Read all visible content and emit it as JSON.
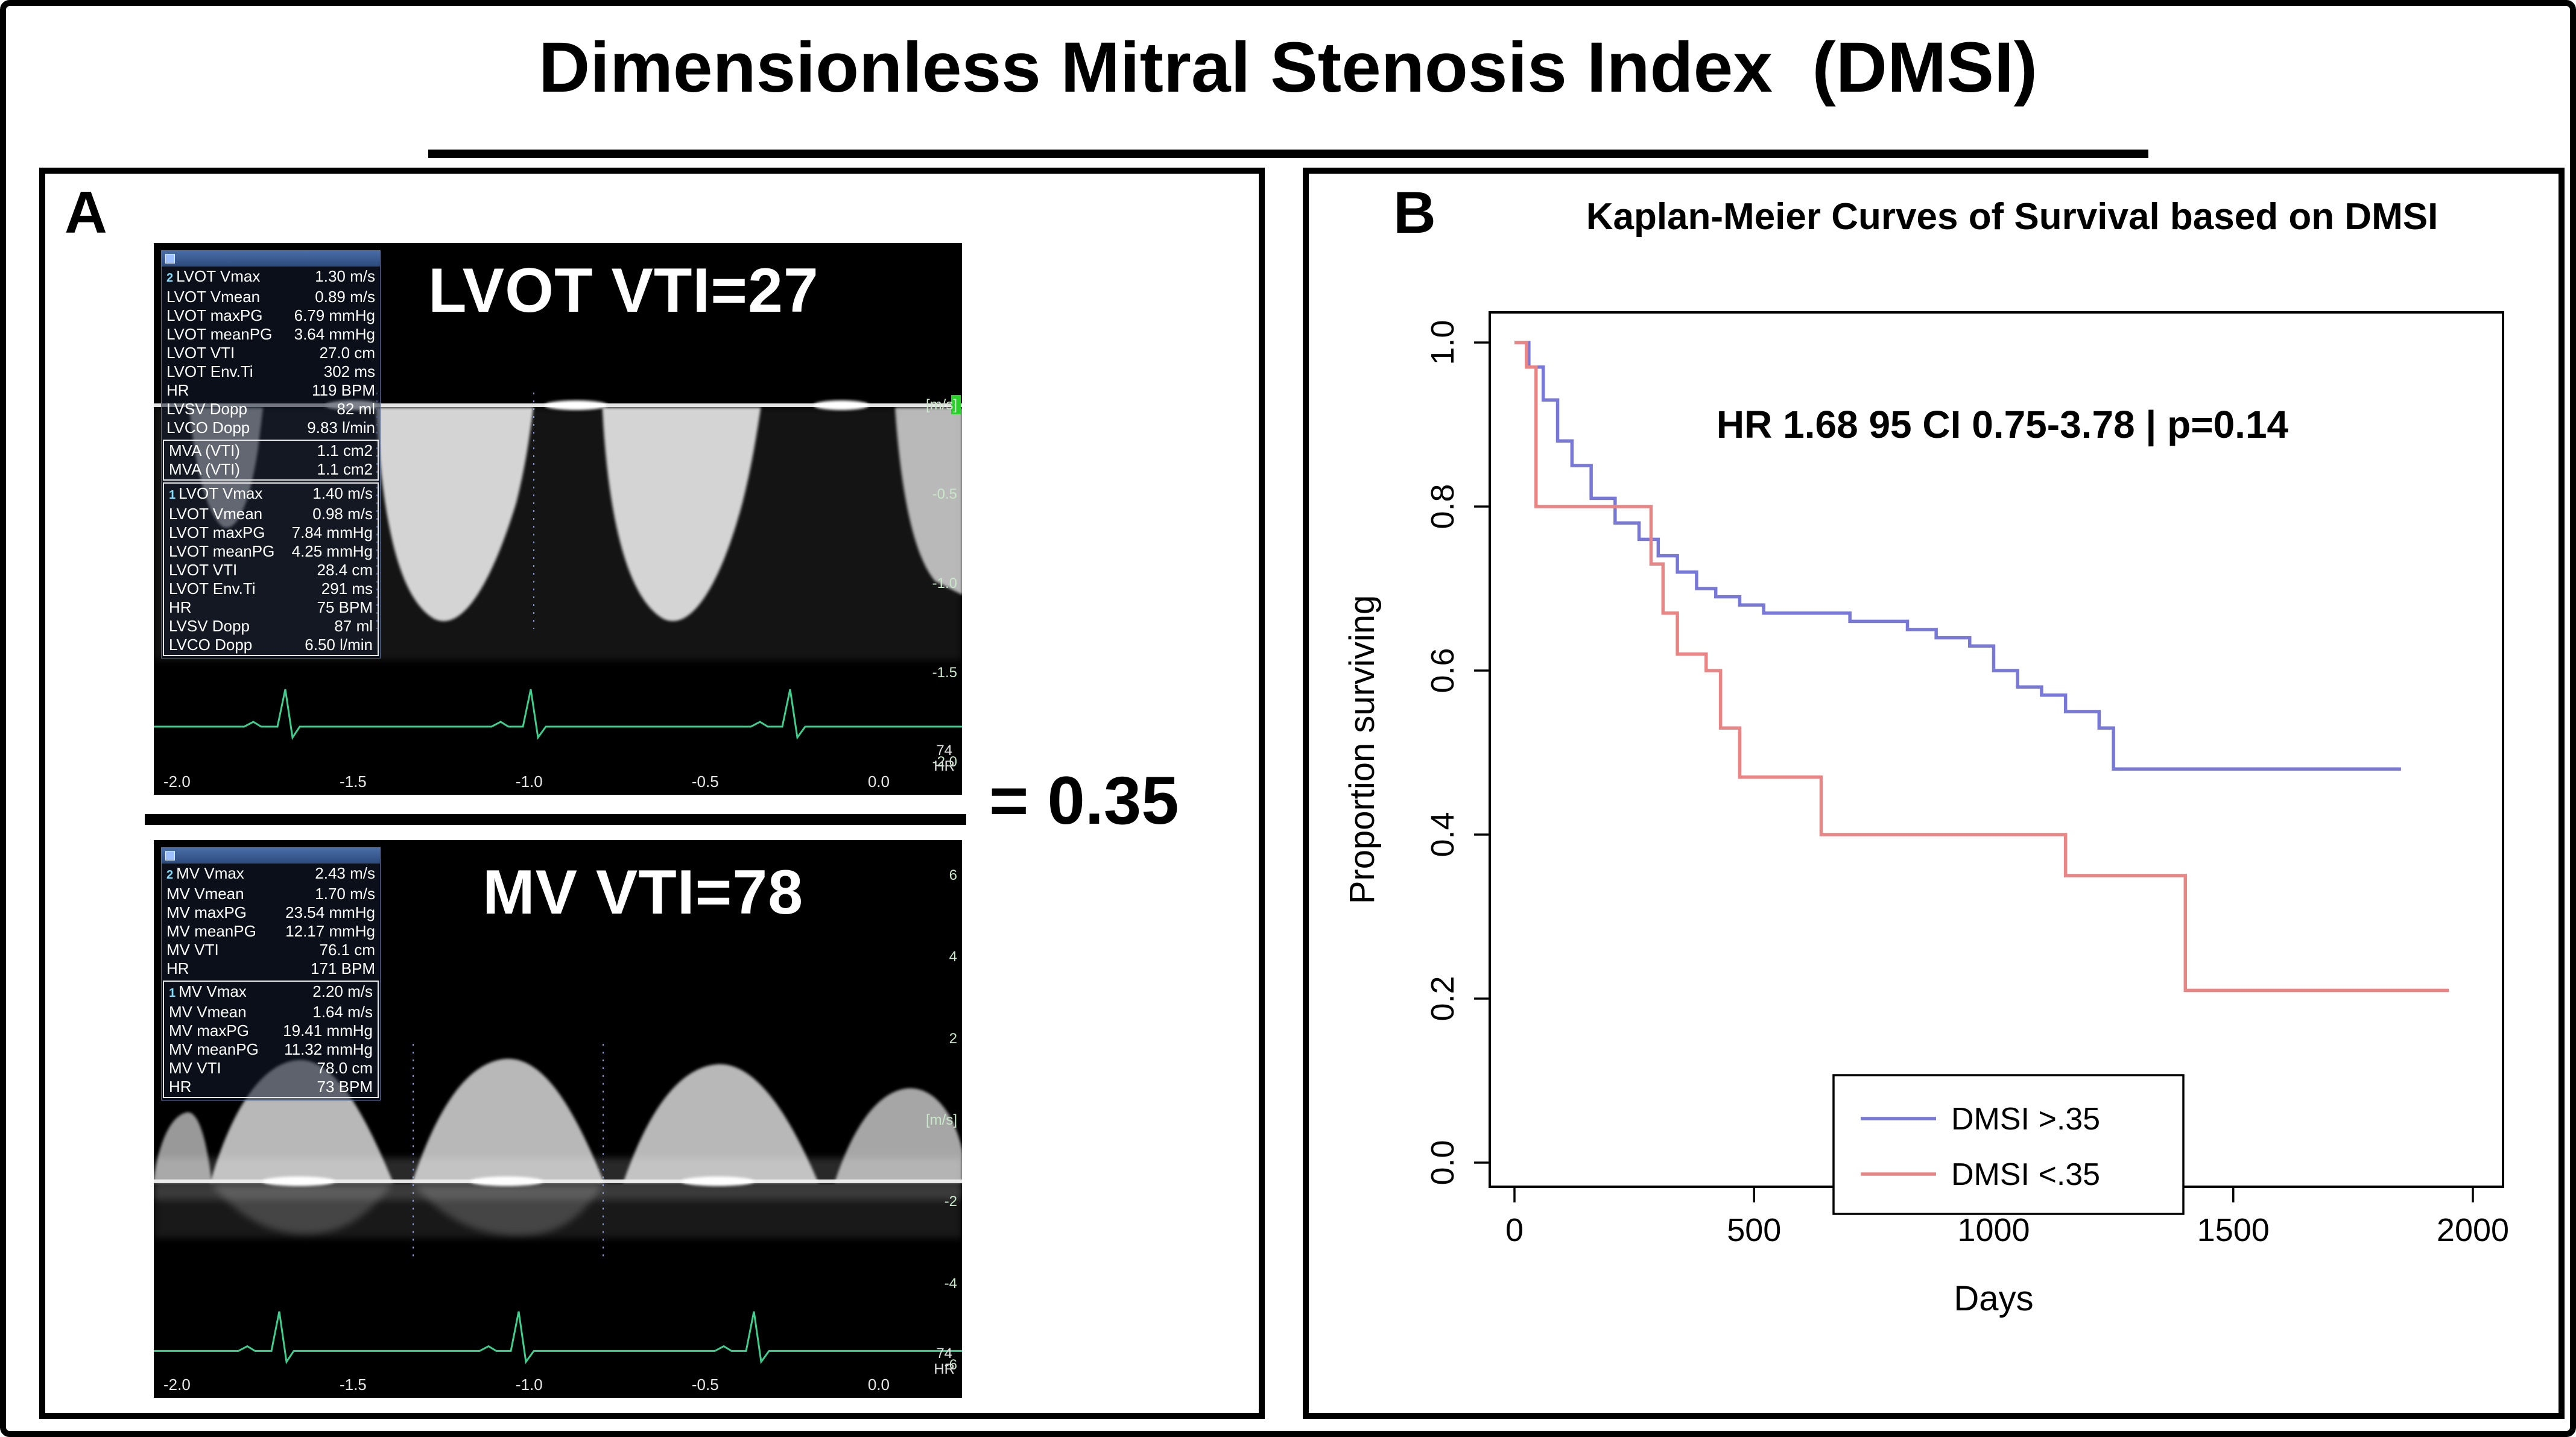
{
  "title": "Dimensionless Mitral Stenosis Index  (DMSI)",
  "panel_a": {
    "label": "A",
    "ratio": "= 0.35",
    "echo_top": {
      "caption": "LVOT VTI=27",
      "table_groups": [
        {
          "boxed": false,
          "tag": "2",
          "rows": [
            [
              "LVOT Vmax",
              "1.30 m/s"
            ],
            [
              "LVOT Vmean",
              "0.89 m/s"
            ],
            [
              "LVOT maxPG",
              "6.79 mmHg"
            ],
            [
              "LVOT meanPG",
              "3.64 mmHg"
            ],
            [
              "LVOT VTI",
              "27.0 cm"
            ],
            [
              "LVOT Env.Ti",
              "302 ms"
            ],
            [
              "HR",
              "119 BPM"
            ],
            [
              "LVSV Dopp",
              "82 ml"
            ],
            [
              "LVCO Dopp",
              "9.83 l/min"
            ]
          ]
        },
        {
          "boxed": true,
          "tag": "",
          "rows": [
            [
              "MVA (VTI)",
              "1.1 cm2"
            ],
            [
              "MVA (VTI)",
              "1.1 cm2"
            ]
          ]
        },
        {
          "boxed": true,
          "tag": "1",
          "rows": [
            [
              "LVOT Vmax",
              "1.40 m/s"
            ],
            [
              "LVOT Vmean",
              "0.98 m/s"
            ],
            [
              "LVOT maxPG",
              "7.84 mmHg"
            ],
            [
              "LVOT meanPG",
              "4.25 mmHg"
            ],
            [
              "LVOT VTI",
              "28.4 cm"
            ],
            [
              "LVOT Env.Ti",
              "291 ms"
            ],
            [
              "HR",
              "75 BPM"
            ],
            [
              "LVSV Dopp",
              "87 ml"
            ],
            [
              "LVCO Dopp",
              "6.50 l/min"
            ]
          ]
        }
      ],
      "time_axis": [
        "-2.0",
        "-1.5",
        "-1.0",
        "-0.5",
        "0.0"
      ],
      "velocity_scale": [
        "[m/s]",
        "-0.5",
        "-1.0",
        "-1.5",
        "-2.0"
      ],
      "hr_value": "74",
      "hr_label": "HR"
    },
    "echo_bottom": {
      "caption": "MV VTI=78",
      "table_groups": [
        {
          "boxed": false,
          "tag": "2",
          "rows": [
            [
              "MV Vmax",
              "2.43 m/s"
            ],
            [
              "MV Vmean",
              "1.70 m/s"
            ],
            [
              "MV maxPG",
              "23.54 mmHg"
            ],
            [
              "MV meanPG",
              "12.17 mmHg"
            ],
            [
              "MV VTI",
              "76.1 cm"
            ],
            [
              "HR",
              "171 BPM"
            ]
          ]
        },
        {
          "boxed": true,
          "tag": "1",
          "rows": [
            [
              "MV Vmax",
              "2.20 m/s"
            ],
            [
              "MV Vmean",
              "1.64 m/s"
            ],
            [
              "MV maxPG",
              "19.41 mmHg"
            ],
            [
              "MV meanPG",
              "11.32 mmHg"
            ],
            [
              "MV VTI",
              "78.0 cm"
            ],
            [
              "HR",
              "73 BPM"
            ]
          ]
        }
      ],
      "time_axis": [
        "-2.0",
        "-1.5",
        "-1.0",
        "-0.5",
        "0.0"
      ],
      "velocity_scale": [
        "6",
        "4",
        "2",
        "[m/s]",
        "-2",
        "-4",
        "-6"
      ],
      "hr_value": "74",
      "hr_label": "HR"
    }
  },
  "panel_b": {
    "label": "B",
    "title": "Kaplan-Meier Curves of Survival based on DMSI"
  },
  "chart_data": {
    "type": "line",
    "subtype": "kaplan-meier-step",
    "title": "Kaplan-Meier Curves of Survival based on DMSI",
    "annotation": "HR 1.68 95 CI 0.75-3.78 | p=0.14",
    "xlabel": "Days",
    "ylabel": "Proportion surviving",
    "xlim": [
      0,
      2000
    ],
    "ylim": [
      0,
      1
    ],
    "xticks": [
      0,
      500,
      1000,
      1500,
      2000
    ],
    "yticks": [
      0.0,
      0.2,
      0.4,
      0.6,
      0.8,
      1.0
    ],
    "grid": false,
    "legend_position": "bottom-center-inside",
    "series": [
      {
        "name": "DMSI >.35",
        "color": "#7878d8",
        "points": [
          [
            0,
            1.0
          ],
          [
            30,
            0.97
          ],
          [
            60,
            0.93
          ],
          [
            90,
            0.88
          ],
          [
            120,
            0.85
          ],
          [
            160,
            0.81
          ],
          [
            210,
            0.78
          ],
          [
            260,
            0.76
          ],
          [
            300,
            0.74
          ],
          [
            340,
            0.72
          ],
          [
            380,
            0.7
          ],
          [
            420,
            0.69
          ],
          [
            470,
            0.68
          ],
          [
            520,
            0.67
          ],
          [
            700,
            0.66
          ],
          [
            820,
            0.65
          ],
          [
            880,
            0.64
          ],
          [
            950,
            0.63
          ],
          [
            1000,
            0.6
          ],
          [
            1050,
            0.58
          ],
          [
            1100,
            0.57
          ],
          [
            1150,
            0.55
          ],
          [
            1220,
            0.53
          ],
          [
            1250,
            0.48
          ],
          [
            1850,
            0.48
          ]
        ]
      },
      {
        "name": "DMSI <.35",
        "color": "#ea8585",
        "points": [
          [
            0,
            1.0
          ],
          [
            25,
            0.97
          ],
          [
            45,
            0.8
          ],
          [
            250,
            0.8
          ],
          [
            285,
            0.73
          ],
          [
            310,
            0.67
          ],
          [
            340,
            0.62
          ],
          [
            400,
            0.6
          ],
          [
            430,
            0.53
          ],
          [
            470,
            0.47
          ],
          [
            640,
            0.4
          ],
          [
            1150,
            0.35
          ],
          [
            1400,
            0.21
          ],
          [
            1950,
            0.21
          ]
        ]
      }
    ]
  }
}
